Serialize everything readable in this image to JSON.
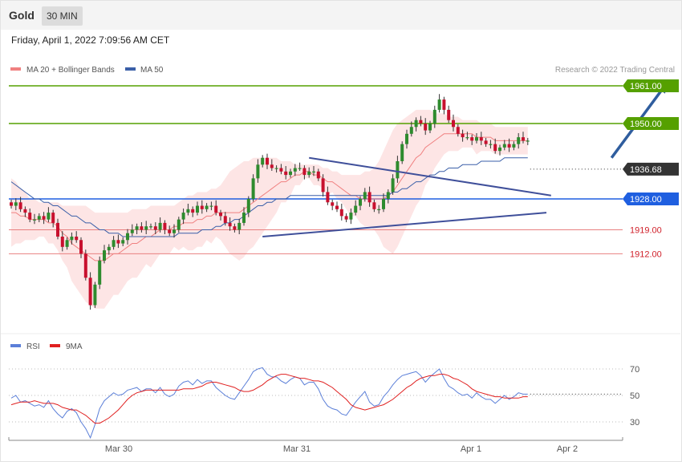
{
  "header": {
    "instrument": "Gold",
    "timeframe": "30 MIN",
    "date": "Friday, April 1, 2022 7:09:56 AM CET"
  },
  "legend": {
    "ma20": "MA 20 + Bollinger Bands",
    "ma50": "MA 50",
    "rsi": "RSI",
    "rsi_ma": "9MA"
  },
  "credit": "Research © 2022 Trading Central",
  "colors": {
    "up": "#2e8b2e",
    "down": "#c8102e",
    "ma20": "#f08080",
    "ma50": "#3a5fa8",
    "rsi": "#5b7fd8",
    "rsi_ma": "#e02020",
    "resistance": "#55a000",
    "pivot": "#1f5fe0",
    "support": "#e88080"
  },
  "chart_data": [
    {
      "type": "candlestick",
      "price_range": [
        1889,
        1964
      ],
      "x_labels": [
        "Mar 30",
        "Mar 31",
        "Apr 1",
        "Apr 2"
      ],
      "current_price": {
        "label": "1936.68",
        "value": 1936.68
      },
      "levels": [
        {
          "label": "1961.00",
          "value": 1961.0,
          "kind": "resistance"
        },
        {
          "label": "1950.00",
          "value": 1950.0,
          "kind": "resistance"
        },
        {
          "label": "1928.00",
          "value": 1928.0,
          "kind": "pivot"
        },
        {
          "label": "1919.00",
          "value": 1919.0,
          "kind": "support"
        },
        {
          "label": "1912.00",
          "value": 1912.0,
          "kind": "support"
        }
      ],
      "closes": [
        1926,
        1927,
        1925,
        1924,
        1922,
        1922,
        1923,
        1922,
        1924,
        1921,
        1917,
        1914,
        1916,
        1917,
        1916,
        1912,
        1905,
        1897,
        1903,
        1910,
        1913,
        1914,
        1916,
        1915,
        1916,
        1918,
        1919,
        1920,
        1919,
        1920,
        1920,
        1919,
        1921,
        1919,
        1918,
        1919,
        1922,
        1924,
        1925,
        1924,
        1926,
        1925,
        1926,
        1926,
        1924,
        1923,
        1921,
        1920,
        1919,
        1921,
        1924,
        1928,
        1934,
        1938,
        1940,
        1938,
        1937,
        1937,
        1936,
        1935,
        1936,
        1937,
        1937,
        1935,
        1936,
        1936,
        1934,
        1930,
        1927,
        1926,
        1925,
        1923,
        1922,
        1924,
        1926,
        1928,
        1930,
        1927,
        1925,
        1925,
        1928,
        1930,
        1934,
        1939,
        1944,
        1947,
        1949,
        1951,
        1950,
        1948,
        1950,
        1954,
        1957,
        1954,
        1951,
        1949,
        1947,
        1946,
        1946,
        1945,
        1946,
        1945,
        1944,
        1944,
        1942,
        1943,
        1944,
        1943,
        1944,
        1946,
        1945,
        1945
      ],
      "ma20": [
        1924,
        1924,
        1923,
        1923,
        1922,
        1922,
        1922,
        1922,
        1921,
        1921,
        1920,
        1918,
        1917,
        1915,
        1914,
        1913,
        1912,
        1911,
        1910,
        1910,
        1910,
        1911,
        1912,
        1912,
        1913,
        1914,
        1915,
        1915,
        1916,
        1917,
        1917,
        1918,
        1919,
        1919,
        1919,
        1920,
        1920,
        1921,
        1921,
        1921,
        1922,
        1922,
        1923,
        1923,
        1924,
        1924,
        1924,
        1924,
        1924,
        1924,
        1925,
        1926,
        1927,
        1928,
        1929,
        1930,
        1931,
        1932,
        1933,
        1933,
        1934,
        1935,
        1935,
        1936,
        1936,
        1935,
        1935,
        1934,
        1933,
        1933,
        1932,
        1931,
        1930,
        1929,
        1929,
        1928,
        1928,
        1928,
        1928,
        1928,
        1928,
        1929,
        1930,
        1932,
        1934,
        1936,
        1938,
        1940,
        1941,
        1943,
        1944,
        1945,
        1946,
        1947,
        1947,
        1947,
        1947,
        1947,
        1947,
        1947,
        1946,
        1946,
        1946,
        1946,
        1945,
        1945,
        1945,
        1945,
        1945,
        1945,
        1945,
        1945
      ],
      "bb_upper": [
        1934,
        1933,
        1931,
        1930,
        1928,
        1928,
        1927,
        1927,
        1927,
        1927,
        1927,
        1926,
        1926,
        1926,
        1926,
        1926,
        1926,
        1925,
        1924,
        1924,
        1924,
        1924,
        1924,
        1924,
        1924,
        1924,
        1925,
        1925,
        1925,
        1925,
        1926,
        1926,
        1926,
        1926,
        1926,
        1926,
        1927,
        1928,
        1929,
        1929,
        1930,
        1930,
        1930,
        1931,
        1931,
        1932,
        1934,
        1936,
        1937,
        1938,
        1939,
        1939,
        1940,
        1940,
        1940,
        1940,
        1940,
        1940,
        1939,
        1939,
        1939,
        1938,
        1938,
        1938,
        1938,
        1938,
        1938,
        1937,
        1937,
        1936,
        1936,
        1935,
        1935,
        1935,
        1935,
        1935,
        1936,
        1936,
        1937,
        1939,
        1942,
        1945,
        1948,
        1950,
        1951,
        1952,
        1953,
        1954,
        1954,
        1954,
        1954,
        1953,
        1953,
        1953,
        1952,
        1952,
        1952,
        1951,
        1951,
        1951,
        1951,
        1950,
        1950,
        1950,
        1949,
        1949,
        1949,
        1949,
        1949,
        1949,
        1949,
        1949
      ],
      "bb_lower": [
        1914,
        1915,
        1915,
        1916,
        1916,
        1916,
        1917,
        1917,
        1915,
        1915,
        1913,
        1910,
        1908,
        1904,
        1902,
        1900,
        1898,
        1897,
        1896,
        1896,
        1896,
        1898,
        1900,
        1900,
        1902,
        1904,
        1905,
        1905,
        1907,
        1909,
        1908,
        1910,
        1912,
        1912,
        1912,
        1914,
        1913,
        1914,
        1913,
        1913,
        1914,
        1914,
        1916,
        1915,
        1917,
        1916,
        1914,
        1912,
        1911,
        1910,
        1911,
        1913,
        1914,
        1916,
        1918,
        1920,
        1922,
        1924,
        1927,
        1927,
        1929,
        1932,
        1932,
        1934,
        1934,
        1932,
        1932,
        1931,
        1929,
        1930,
        1928,
        1927,
        1925,
        1923,
        1923,
        1921,
        1920,
        1920,
        1919,
        1917,
        1914,
        1913,
        1912,
        1914,
        1917,
        1920,
        1923,
        1926,
        1928,
        1932,
        1934,
        1937,
        1939,
        1941,
        1942,
        1942,
        1942,
        1943,
        1943,
        1943,
        1941,
        1942,
        1942,
        1942,
        1941,
        1941,
        1941,
        1941,
        1941,
        1941,
        1941,
        1941
      ],
      "ma50": [
        1933,
        1932,
        1931,
        1930,
        1929,
        1928,
        1928,
        1927,
        1927,
        1926,
        1926,
        1925,
        1924,
        1923,
        1923,
        1922,
        1921,
        1921,
        1920,
        1919,
        1919,
        1918,
        1918,
        1918,
        1917,
        1917,
        1917,
        1917,
        1917,
        1917,
        1917,
        1917,
        1917,
        1917,
        1917,
        1917,
        1918,
        1918,
        1918,
        1918,
        1918,
        1919,
        1919,
        1919,
        1920,
        1920,
        1921,
        1921,
        1922,
        1922,
        1923,
        1924,
        1925,
        1926,
        1926,
        1927,
        1927,
        1928,
        1928,
        1928,
        1929,
        1929,
        1929,
        1929,
        1929,
        1929,
        1929,
        1929,
        1929,
        1929,
        1929,
        1929,
        1929,
        1929,
        1929,
        1929,
        1929,
        1929,
        1929,
        1929,
        1929,
        1929,
        1930,
        1930,
        1931,
        1931,
        1932,
        1933,
        1933,
        1934,
        1935,
        1935,
        1936,
        1936,
        1937,
        1937,
        1937,
        1938,
        1938,
        1938,
        1938,
        1939,
        1939,
        1939,
        1939,
        1939,
        1940,
        1940,
        1940,
        1940,
        1940,
        1940
      ],
      "trendlines": [
        {
          "from": {
            "bar": 64,
            "price": 1940
          },
          "to": {
            "bar": 116,
            "price": 1929
          }
        },
        {
          "from": {
            "bar": 54,
            "price": 1917
          },
          "to": {
            "bar": 115,
            "price": 1924
          }
        }
      ],
      "arrow": {
        "from": {
          "bar": 129,
          "price": 1940
        },
        "to": {
          "bar": 141,
          "price": 1962
        }
      }
    },
    {
      "type": "line",
      "name": "RSI",
      "ylim": [
        20,
        80
      ],
      "ticks": [
        70,
        50,
        30
      ],
      "tick_labels": [
        "70",
        "50",
        "30"
      ],
      "rsi": [
        48,
        50,
        45,
        46,
        44,
        42,
        43,
        41,
        46,
        40,
        36,
        33,
        38,
        40,
        37,
        30,
        25,
        18,
        28,
        40,
        46,
        49,
        52,
        50,
        51,
        54,
        55,
        56,
        53,
        55,
        55,
        52,
        56,
        51,
        49,
        51,
        57,
        60,
        61,
        58,
        62,
        59,
        61,
        61,
        56,
        53,
        50,
        48,
        47,
        52,
        57,
        62,
        68,
        70,
        71,
        66,
        64,
        64,
        61,
        59,
        62,
        64,
        63,
        58,
        60,
        60,
        55,
        47,
        42,
        40,
        39,
        36,
        35,
        40,
        45,
        49,
        53,
        45,
        42,
        43,
        49,
        53,
        58,
        62,
        65,
        66,
        67,
        68,
        65,
        60,
        64,
        67,
        70,
        63,
        57,
        55,
        52,
        50,
        51,
        48,
        52,
        49,
        47,
        47,
        44,
        47,
        50,
        47,
        49,
        52,
        51,
        51
      ],
      "ma9": [
        43,
        44,
        45,
        45,
        45,
        46,
        45,
        44,
        44,
        44,
        43,
        41,
        40,
        39,
        39,
        37,
        35,
        32,
        29,
        29,
        31,
        33,
        36,
        39,
        43,
        47,
        50,
        52,
        53,
        54,
        54,
        54,
        54,
        54,
        54,
        54,
        54,
        55,
        55,
        55,
        56,
        57,
        59,
        60,
        60,
        59,
        58,
        57,
        56,
        54,
        53,
        53,
        54,
        56,
        58,
        61,
        63,
        65,
        66,
        66,
        65,
        64,
        63,
        63,
        62,
        61,
        61,
        60,
        58,
        56,
        53,
        50,
        47,
        43,
        41,
        40,
        39,
        40,
        41,
        42,
        43,
        45,
        47,
        50,
        53,
        56,
        58,
        61,
        63,
        64,
        65,
        65,
        66,
        66,
        65,
        63,
        62,
        60,
        58,
        55,
        53,
        52,
        51,
        50,
        49,
        49,
        48,
        48,
        48,
        48,
        49,
        49
      ]
    }
  ]
}
